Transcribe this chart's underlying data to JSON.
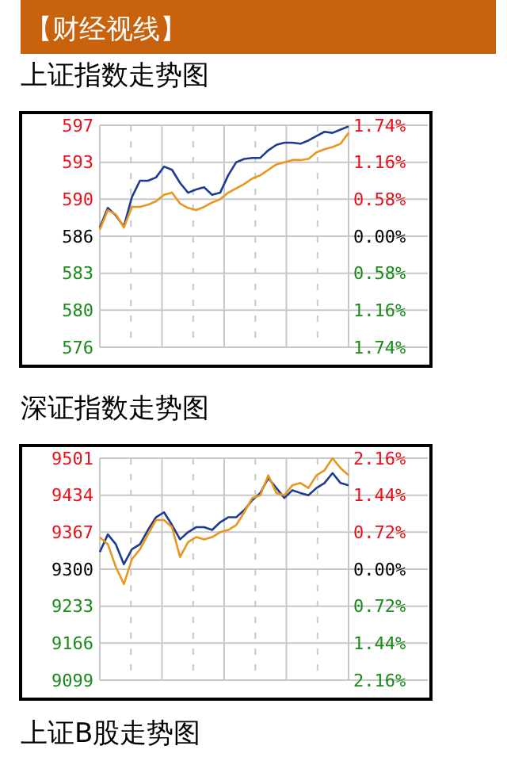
{
  "chart_data": [
    {
      "type": "other",
      "title": "【财经视线】"
    },
    {
      "type": "line",
      "title": "上证指数走势图",
      "categories": [
        null,
        null,
        null,
        null,
        null,
        null,
        null,
        null,
        null,
        null,
        null,
        null,
        null,
        null,
        null,
        null,
        null,
        null,
        null,
        null,
        null,
        null,
        null,
        null,
        null,
        null,
        null,
        null,
        null,
        null,
        null,
        null
      ],
      "series": [
        {
          "color": "#1f3a93",
          "values": [
            587.2,
            589.0,
            588.3,
            587.3,
            590.0,
            591.5,
            591.5,
            591.8,
            592.8,
            592.5,
            591.3,
            590.4,
            590.7,
            590.9,
            590.2,
            590.4,
            592.0,
            593.2,
            593.5,
            593.6,
            593.6,
            594.3,
            594.8,
            595.0,
            595.0,
            594.9,
            595.2,
            595.6,
            596.0,
            595.9,
            596.2,
            596.5
          ]
        },
        {
          "color": "#e8961e",
          "values": [
            587.0,
            588.8,
            588.4,
            587.2,
            589.1,
            589.1,
            589.3,
            589.6,
            590.2,
            590.4,
            589.4,
            589.0,
            588.8,
            589.1,
            589.5,
            589.8,
            590.4,
            590.8,
            591.2,
            591.7,
            592.0,
            592.5,
            593.0,
            593.2,
            593.4,
            593.4,
            593.5,
            594.1,
            594.4,
            594.6,
            594.9,
            595.9
          ]
        }
      ],
      "ylim": [
        576.2,
        596.6
      ],
      "yticks": [
        {
          "value": 576.2,
          "label": "576"
        },
        {
          "value": 579.6,
          "label": "580"
        },
        {
          "value": 583.0,
          "label": "583"
        },
        {
          "value": 586.4,
          "label": "586"
        },
        {
          "value": 589.8,
          "label": "590"
        },
        {
          "value": 593.2,
          "label": "593"
        },
        {
          "value": 596.6,
          "label": "597"
        }
      ],
      "y2lim": [
        -1.74,
        1.74
      ],
      "y2ticks": [
        {
          "value": -1.74,
          "label": "1.74%"
        },
        {
          "value": -1.16,
          "label": "1.16%"
        },
        {
          "value": -0.58,
          "label": "0.58%"
        },
        {
          "value": 0,
          "label": "0.00%"
        },
        {
          "value": 0.58,
          "label": "0.58%"
        },
        {
          "value": 1.16,
          "label": "1.16%"
        },
        {
          "value": 1.74,
          "label": "1.74%"
        }
      ],
      "grid": true
    },
    {
      "type": "line",
      "title": "深证指数走势图",
      "categories": [
        null,
        null,
        null,
        null,
        null,
        null,
        null,
        null,
        null,
        null,
        null,
        null,
        null,
        null,
        null,
        null,
        null,
        null,
        null,
        null,
        null,
        null,
        null,
        null,
        null,
        null,
        null,
        null,
        null,
        null,
        null,
        null
      ],
      "series": [
        {
          "color": "#1f3a93",
          "values": [
            9331,
            9363,
            9345,
            9309,
            9336,
            9345,
            9371,
            9394,
            9403,
            9380,
            9354,
            9367,
            9376,
            9376,
            9371,
            9385,
            9394,
            9394,
            9407,
            9425,
            9438,
            9465,
            9447,
            9429,
            9443,
            9438,
            9434,
            9447,
            9456,
            9474,
            9456,
            9452
          ]
        },
        {
          "color": "#e8961e",
          "values": [
            9358,
            9345,
            9304,
            9273,
            9318,
            9336,
            9363,
            9389,
            9389,
            9376,
            9322,
            9349,
            9358,
            9354,
            9358,
            9367,
            9371,
            9380,
            9403,
            9429,
            9434,
            9470,
            9438,
            9434,
            9452,
            9456,
            9447,
            9470,
            9479,
            9501,
            9483,
            9470
          ]
        }
      ],
      "ylim": [
        9099,
        9501
      ],
      "yticks": [
        9099,
        9166,
        9233,
        9300,
        9367,
        9434,
        9501
      ],
      "y2lim": [
        -2.16,
        2.16
      ],
      "y2ticks": [
        {
          "value": -2.16,
          "label": "2.16%"
        },
        {
          "value": -1.44,
          "label": "1.44%"
        },
        {
          "value": -0.72,
          "label": "0.72%"
        },
        {
          "value": 0,
          "label": "0.00%"
        },
        {
          "value": 0.72,
          "label": "0.72%"
        },
        {
          "value": 1.44,
          "label": "1.44%"
        },
        {
          "value": 2.16,
          "label": "2.16%"
        }
      ],
      "grid": true
    },
    {
      "type": "other",
      "title": "上证B股走势图"
    }
  ]
}
